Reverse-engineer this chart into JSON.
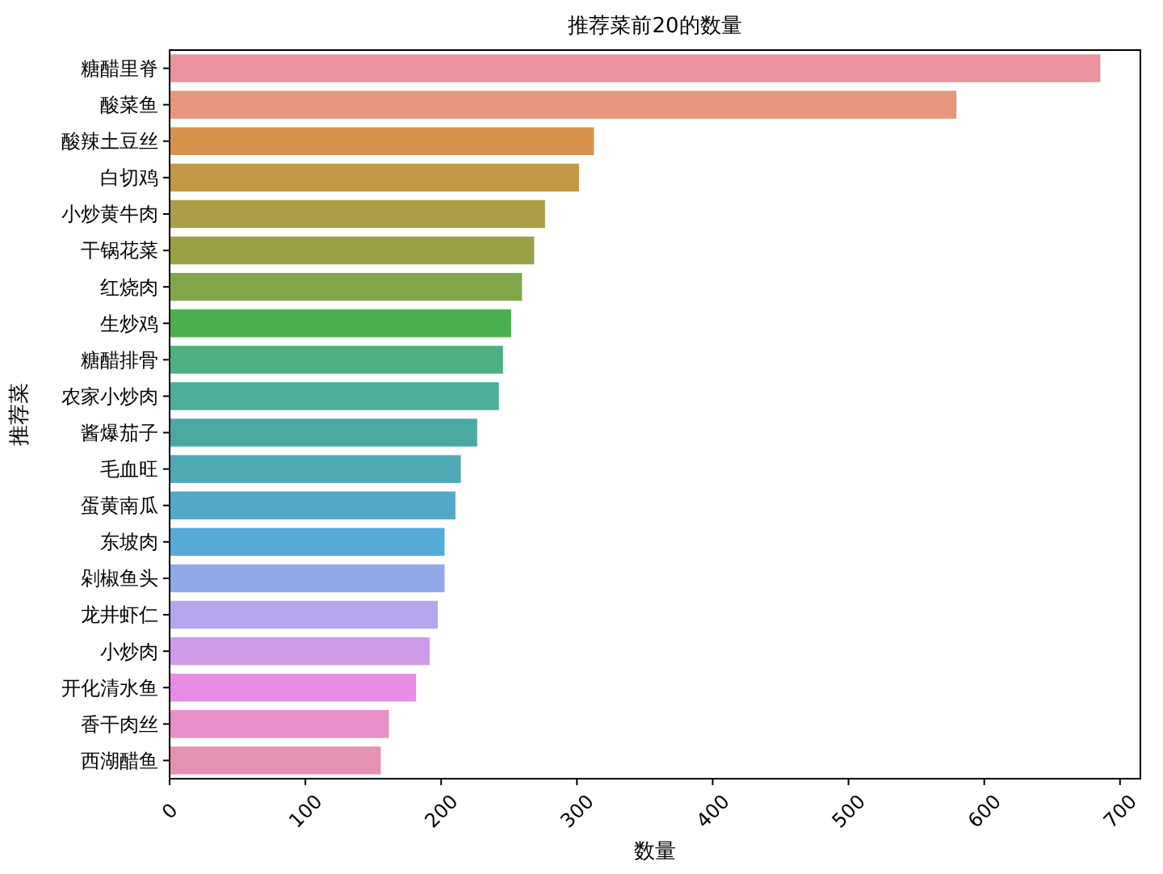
{
  "chart_data": {
    "type": "bar",
    "orientation": "horizontal",
    "title": "推荐菜前20的数量",
    "xlabel": "数量",
    "ylabel": "推荐菜",
    "categories": [
      "糖醋里脊",
      "酸菜鱼",
      "酸辣土豆丝",
      "白切鸡",
      "小炒黄牛肉",
      "干锅花菜",
      "红烧肉",
      "生炒鸡",
      "糖醋排骨",
      "农家小炒肉",
      "酱爆茄子",
      "毛血旺",
      "蛋黄南瓜",
      "东坡肉",
      "剁椒鱼头",
      "龙井虾仁",
      "小炒肉",
      "开化清水鱼",
      "香干肉丝",
      "西湖醋鱼"
    ],
    "values": [
      686,
      580,
      313,
      302,
      277,
      269,
      260,
      252,
      246,
      243,
      227,
      215,
      211,
      203,
      203,
      198,
      192,
      182,
      162,
      156
    ],
    "colors": [
      "#e8939e",
      "#e6957f",
      "#d6924d",
      "#c09946",
      "#ab9d46",
      "#9ba044",
      "#80a648",
      "#4caf50",
      "#4daf82",
      "#4cae9a",
      "#4aaaa3",
      "#4ea9b5",
      "#52a8c6",
      "#56aad8",
      "#91a9e6",
      "#b4a5ec",
      "#cf9be8",
      "#e78ce4",
      "#e78fc6",
      "#e591b4"
    ],
    "xlim": [
      0,
      715
    ],
    "xticks": [
      0,
      100,
      200,
      300,
      400,
      500,
      600,
      700
    ],
    "grid": false
  }
}
